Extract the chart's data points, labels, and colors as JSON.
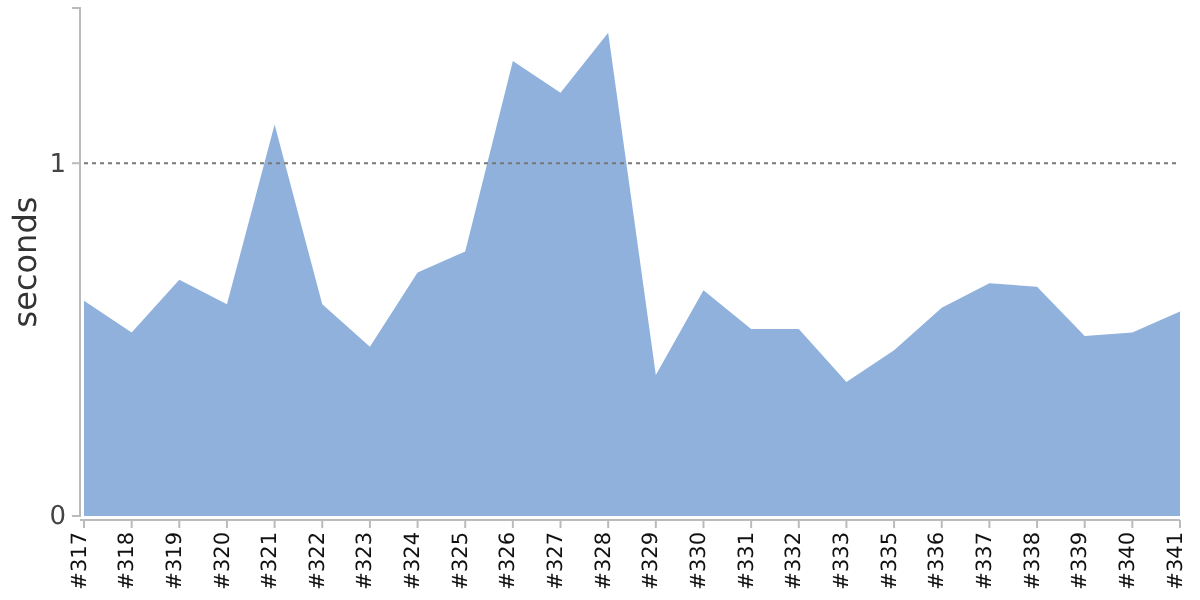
{
  "chart_data": {
    "type": "area",
    "ylabel": "seconds",
    "categories": [
      "#317",
      "#318",
      "#319",
      "#320",
      "#321",
      "#322",
      "#323",
      "#324",
      "#325",
      "#326",
      "#327",
      "#328",
      "#329",
      "#330",
      "#331",
      "#332",
      "#333",
      "#335",
      "#336",
      "#337",
      "#338",
      "#339",
      "#340",
      "#341"
    ],
    "series": [
      {
        "color": "#8fb1db",
        "values": [
          0.61,
          0.52,
          0.67,
          0.6,
          1.11,
          0.6,
          0.48,
          0.69,
          0.75,
          1.29,
          1.2,
          1.37,
          0.4,
          0.64,
          0.53,
          0.53,
          0.38,
          0.47,
          0.59,
          0.66,
          0.65,
          0.51,
          0.52,
          0.58
        ]
      }
    ],
    "ylim": [
      0,
      1.44
    ],
    "yticks": [
      0,
      1
    ],
    "ref_lines": [
      {
        "axis": "y",
        "value": 1,
        "color": "#777777",
        "line_style": "dotted"
      }
    ]
  }
}
